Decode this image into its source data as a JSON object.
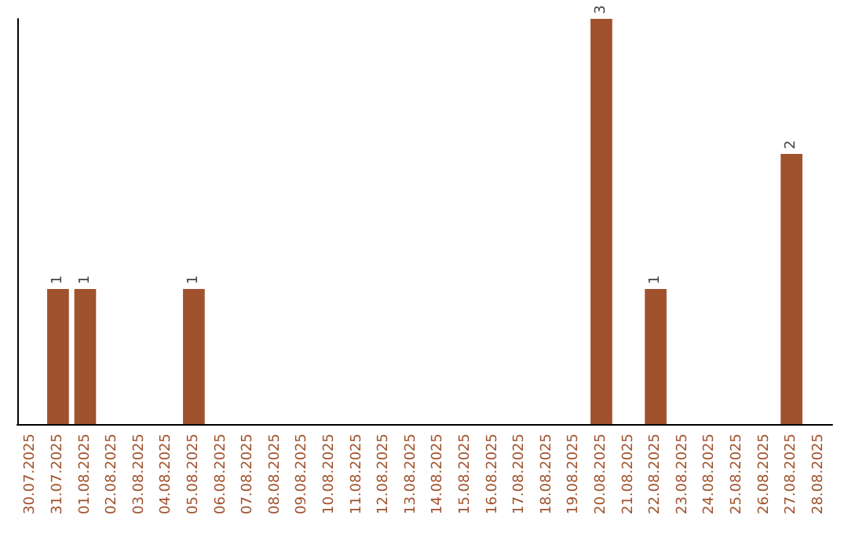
{
  "chart_data": {
    "type": "bar",
    "categories": [
      "30.07.2025",
      "31.07.2025",
      "01.08.2025",
      "02.08.2025",
      "03.08.2025",
      "04.08.2025",
      "05.08.2025",
      "06.08.2025",
      "07.08.2025",
      "08.08.2025",
      "09.08.2025",
      "10.08.2025",
      "11.08.2025",
      "12.08.2025",
      "13.08.2025",
      "14.08.2025",
      "15.08.2025",
      "16.08.2025",
      "17.08.2025",
      "18.08.2025",
      "19.08.2025",
      "20.08.2025",
      "21.08.2025",
      "22.08.2025",
      "23.08.2025",
      "24.08.2025",
      "25.08.2025",
      "26.08.2025",
      "27.08.2025",
      "28.08.2025"
    ],
    "values": [
      0,
      1,
      1,
      0,
      0,
      0,
      1,
      0,
      0,
      0,
      0,
      0,
      0,
      0,
      0,
      0,
      0,
      0,
      0,
      0,
      0,
      3,
      0,
      1,
      0,
      0,
      0,
      0,
      2,
      0
    ],
    "value_labels": [
      null,
      "1",
      "1",
      null,
      null,
      null,
      "1",
      null,
      null,
      null,
      null,
      null,
      null,
      null,
      null,
      null,
      null,
      null,
      null,
      null,
      null,
      "3",
      null,
      "1",
      null,
      null,
      null,
      null,
      "2",
      null
    ],
    "color": "#a0522d",
    "tick_labels": "x",
    "grid": false
  }
}
